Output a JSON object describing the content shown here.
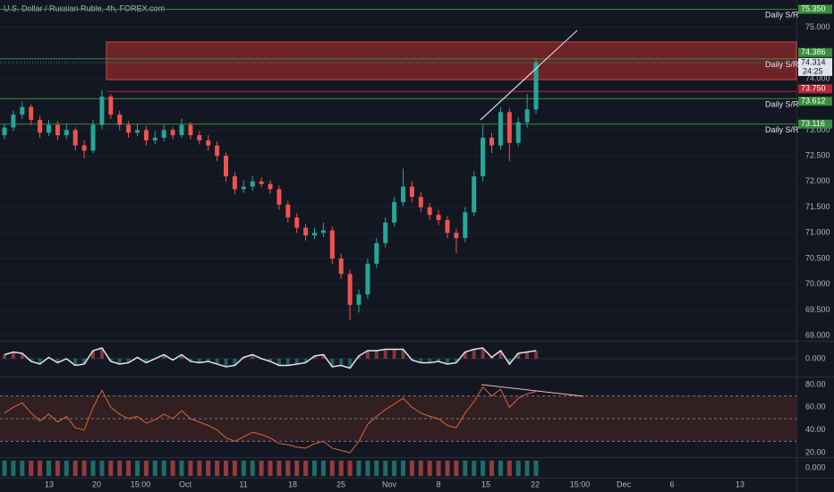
{
  "chart_data": {
    "type": "candlestick",
    "title": "U.S. Dollar / Russian Ruble, 4h, FOREX.com",
    "up_color": "#26a69a",
    "down_color": "#ef5350",
    "open": [
      72.9,
      73.05,
      73.3,
      73.45,
      73.2,
      72.95,
      73.1,
      72.9,
      73.0,
      72.7,
      72.6,
      73.1,
      73.65,
      73.3,
      73.1,
      72.95,
      73.0,
      72.8,
      72.85,
      73.0,
      72.9,
      73.1,
      72.9,
      72.8,
      72.7,
      72.5,
      72.1,
      71.85,
      71.9,
      72.0,
      71.95,
      71.85,
      71.55,
      71.3,
      71.1,
      70.95,
      71.0,
      71.05,
      70.5,
      70.2,
      69.6,
      69.8,
      70.4,
      70.8,
      71.2,
      71.6,
      71.9,
      71.7,
      71.5,
      71.35,
      71.25,
      71.0,
      70.9,
      71.4,
      72.1,
      72.85,
      72.7,
      73.35,
      72.75,
      73.15,
      73.4
    ],
    "high": [
      73.12,
      73.38,
      73.55,
      73.5,
      73.28,
      73.2,
      73.18,
      73.12,
      73.05,
      72.8,
      73.2,
      73.78,
      73.7,
      73.38,
      73.18,
      73.12,
      73.08,
      72.98,
      73.1,
      73.06,
      73.22,
      73.15,
      72.98,
      72.9,
      72.78,
      72.56,
      72.18,
      72.02,
      72.1,
      72.08,
      72.02,
      71.92,
      71.62,
      71.38,
      71.18,
      71.1,
      71.2,
      71.12,
      70.6,
      70.28,
      69.9,
      70.5,
      70.9,
      71.3,
      71.7,
      72.25,
      72.0,
      71.8,
      71.58,
      71.45,
      71.32,
      71.08,
      71.5,
      72.2,
      73.1,
      72.95,
      73.45,
      73.42,
      73.25,
      73.7,
      74.4
    ],
    "low": [
      72.82,
      72.98,
      73.22,
      73.1,
      72.85,
      72.88,
      72.8,
      72.82,
      72.6,
      72.45,
      72.55,
      73.02,
      73.22,
      73.0,
      72.85,
      72.88,
      72.7,
      72.72,
      72.78,
      72.82,
      72.85,
      72.82,
      72.72,
      72.6,
      72.4,
      72.0,
      71.75,
      71.78,
      71.82,
      71.88,
      71.76,
      71.45,
      71.2,
      71.0,
      70.85,
      70.88,
      70.92,
      70.4,
      70.1,
      69.3,
      69.45,
      69.72,
      70.32,
      70.72,
      71.12,
      71.52,
      71.6,
      71.4,
      71.25,
      71.15,
      70.9,
      70.6,
      70.82,
      71.32,
      72.0,
      72.55,
      72.62,
      72.4,
      72.68,
      73.05,
      73.32
    ],
    "close": [
      73.05,
      73.3,
      73.45,
      73.2,
      72.95,
      73.1,
      72.9,
      73.0,
      72.7,
      72.6,
      73.1,
      73.65,
      73.3,
      73.1,
      72.95,
      73.0,
      72.8,
      72.85,
      73.0,
      72.9,
      73.1,
      72.9,
      72.8,
      72.7,
      72.5,
      72.1,
      71.85,
      71.9,
      72.0,
      71.95,
      71.85,
      71.55,
      71.3,
      71.1,
      70.95,
      71.0,
      71.05,
      70.5,
      70.2,
      69.6,
      69.8,
      70.4,
      70.8,
      71.2,
      71.6,
      71.9,
      71.7,
      71.5,
      71.35,
      71.25,
      71.0,
      70.9,
      71.4,
      72.1,
      72.85,
      72.7,
      73.35,
      72.75,
      73.15,
      73.4,
      74.314
    ],
    "countdown": "24:25",
    "ylim": [
      68.9,
      75.53
    ],
    "yticks": [
      {
        "value": 69,
        "label": "69.000"
      },
      {
        "value": 69.5,
        "label": "69.500"
      },
      {
        "value": 70,
        "label": "70.000"
      },
      {
        "value": 70.5,
        "label": "70.500"
      },
      {
        "value": 71,
        "label": "71.000"
      },
      {
        "value": 71.5,
        "label": "71.500"
      },
      {
        "value": 72,
        "label": "72.000"
      },
      {
        "value": 72.5,
        "label": "72.500"
      },
      {
        "value": 73,
        "label": "73.000"
      },
      {
        "value": 74,
        "label": "74.000"
      },
      {
        "value": 75,
        "label": "75.000"
      }
    ],
    "zone": [
      73.98,
      74.714
    ],
    "zone_color": "#8b2a2a",
    "levels": [
      {
        "value": 75.35,
        "label": "75.350",
        "color": "#388e3c",
        "text": "Daily S/R"
      },
      {
        "value": 74.386,
        "label": "74.386",
        "color": "#388e3c",
        "text": "Daily S/R"
      },
      {
        "value": 73.75,
        "label": "73.750",
        "color": "#b22833"
      },
      {
        "value": 73.612,
        "label": "73.612",
        "color": "#388e3c",
        "text": "Daily S/R"
      },
      {
        "value": 73.116,
        "label": "73.116",
        "color": "#388e3c",
        "text": "Daily S/R"
      }
    ],
    "x_labels": [
      "13",
      "20",
      "15:00",
      "Oct",
      "11",
      "18",
      "25",
      "Nov",
      "8",
      "15",
      "22",
      "15:00",
      "Dec",
      "6",
      "13"
    ],
    "oscillator": {
      "color": "#e0e3eb",
      "values": [
        0.3,
        0.5,
        0.4,
        -0.2,
        -0.4,
        0.1,
        -0.3,
        0.0,
        -0.5,
        -0.4,
        0.6,
        0.8,
        -0.2,
        -0.4,
        -0.3,
        0.1,
        -0.3,
        0.0,
        0.3,
        -0.1,
        0.3,
        -0.2,
        -0.3,
        -0.2,
        -0.4,
        -0.6,
        -0.5,
        0.1,
        0.3,
        0.0,
        -0.2,
        -0.5,
        -0.5,
        -0.4,
        -0.3,
        0.2,
        0.3,
        -0.6,
        -0.5,
        -0.7,
        0.2,
        0.6,
        0.6,
        0.7,
        0.7,
        0.7,
        -0.1,
        -0.3,
        -0.3,
        -0.2,
        -0.4,
        -0.3,
        0.5,
        0.7,
        0.8,
        0.1,
        0.6,
        -0.4,
        0.4,
        0.5,
        0.6
      ],
      "ylim": [
        -1.27,
        1.2
      ],
      "yticks": [
        {
          "value": 0,
          "label": "0.000"
        }
      ]
    },
    "rsi": {
      "color": "#d9673a",
      "values": [
        55,
        60,
        64,
        55,
        48,
        54,
        47,
        52,
        42,
        40,
        60,
        75,
        60,
        54,
        50,
        52,
        46,
        49,
        54,
        50,
        57,
        50,
        47,
        44,
        40,
        33,
        30,
        34,
        38,
        36,
        33,
        28,
        27,
        25,
        24,
        28,
        30,
        24,
        22,
        20,
        30,
        45,
        52,
        58,
        63,
        68,
        60,
        55,
        52,
        50,
        44,
        42,
        55,
        65,
        78,
        70,
        76,
        60,
        68,
        72,
        74
      ],
      "ylim": [
        15.3,
        86.3
      ],
      "bands": [
        70,
        50,
        30
      ],
      "yticks": [
        {
          "value": 80,
          "label": "80.00"
        },
        {
          "value": 60,
          "label": "60.00"
        },
        {
          "value": 40,
          "label": "40.00"
        },
        {
          "value": 20,
          "label": "20.00"
        }
      ]
    },
    "volume": {
      "yticks": [
        {
          "value": 0,
          "label": "0.000"
        }
      ]
    }
  }
}
